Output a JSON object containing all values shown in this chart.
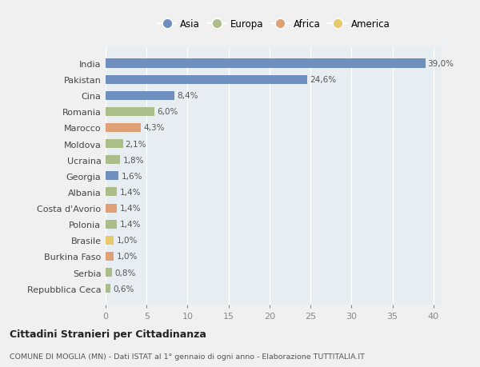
{
  "categories": [
    "India",
    "Pakistan",
    "Cina",
    "Romania",
    "Marocco",
    "Moldova",
    "Ucraina",
    "Georgia",
    "Albania",
    "Costa d'Avorio",
    "Polonia",
    "Brasile",
    "Burkina Faso",
    "Serbia",
    "Repubblica Ceca"
  ],
  "values": [
    39.0,
    24.6,
    8.4,
    6.0,
    4.3,
    2.1,
    1.8,
    1.6,
    1.4,
    1.4,
    1.4,
    1.0,
    1.0,
    0.8,
    0.6
  ],
  "labels": [
    "39,0%",
    "24,6%",
    "8,4%",
    "6,0%",
    "4,3%",
    "2,1%",
    "1,8%",
    "1,6%",
    "1,4%",
    "1,4%",
    "1,4%",
    "1,0%",
    "1,0%",
    "0,8%",
    "0,6%"
  ],
  "colors": [
    "#6f8fbe",
    "#6f8fbe",
    "#6f8fbe",
    "#abbe8a",
    "#e0a075",
    "#abbe8a",
    "#abbe8a",
    "#6f8fbe",
    "#abbe8a",
    "#e0a075",
    "#abbe8a",
    "#e8c96b",
    "#e0a075",
    "#abbe8a",
    "#abbe8a"
  ],
  "legend_labels": [
    "Asia",
    "Europa",
    "Africa",
    "America"
  ],
  "legend_colors": [
    "#6f8fbe",
    "#abbe8a",
    "#e0a075",
    "#e8c96b"
  ],
  "xlim": [
    0,
    41
  ],
  "xticks": [
    0,
    5,
    10,
    15,
    20,
    25,
    30,
    35,
    40
  ],
  "title": "Cittadini Stranieri per Cittadinanza",
  "subtitle": "COMUNE DI MOGLIA (MN) - Dati ISTAT al 1° gennaio di ogni anno - Elaborazione TUTTITALIA.IT",
  "bg_color": "#f0f0f0",
  "plot_bg_color": "#e8edf2",
  "grid_color": "#ffffff"
}
